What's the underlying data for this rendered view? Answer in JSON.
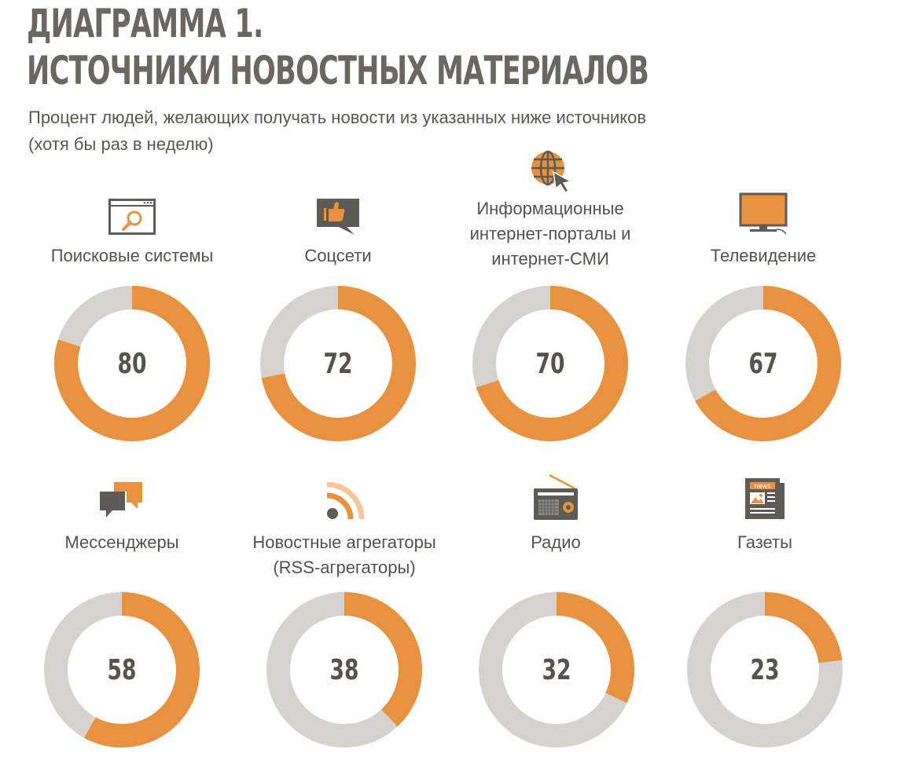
{
  "header": {
    "title_line1": "ДИАГРАММА 1.",
    "title_line2": "ИСТОЧНИКИ НОВОСТНЫХ МАТЕРИАЛОВ",
    "subtitle_line1": "Процент людей, желающих получать новости из указанных ниже источников",
    "subtitle_line2": "(хотя бы раз в неделю)"
  },
  "colors": {
    "accent": "#E8913E",
    "track": "#D6D3CF",
    "icon_dark": "#5E5A54"
  },
  "chart_data": {
    "type": "pie",
    "subtype": "donut",
    "unit": "%",
    "items": [
      {
        "label_lines": [
          "Поисковые системы"
        ],
        "value": 80,
        "icon": "browser-search-icon"
      },
      {
        "label_lines": [
          "Соцсети"
        ],
        "value": 72,
        "icon": "thumbs-up-chat-icon"
      },
      {
        "label_lines": [
          "Информационные",
          "интернет-порталы и",
          "интернет-СМИ"
        ],
        "value": 70,
        "icon": "globe-cursor-icon"
      },
      {
        "label_lines": [
          "Телевидение"
        ],
        "value": 67,
        "icon": "tv-icon"
      },
      {
        "label_lines": [
          "Мессенджеры"
        ],
        "value": 58,
        "icon": "chat-bubbles-icon"
      },
      {
        "label_lines": [
          "Новостные агрегаторы",
          "(RSS-агрегаторы)"
        ],
        "value": 38,
        "icon": "rss-icon"
      },
      {
        "label_lines": [
          "Радио"
        ],
        "value": 32,
        "icon": "radio-icon"
      },
      {
        "label_lines": [
          "Газеты"
        ],
        "value": 23,
        "icon": "newspaper-icon"
      }
    ],
    "icon_texts": {
      "newspaper": "news"
    }
  }
}
